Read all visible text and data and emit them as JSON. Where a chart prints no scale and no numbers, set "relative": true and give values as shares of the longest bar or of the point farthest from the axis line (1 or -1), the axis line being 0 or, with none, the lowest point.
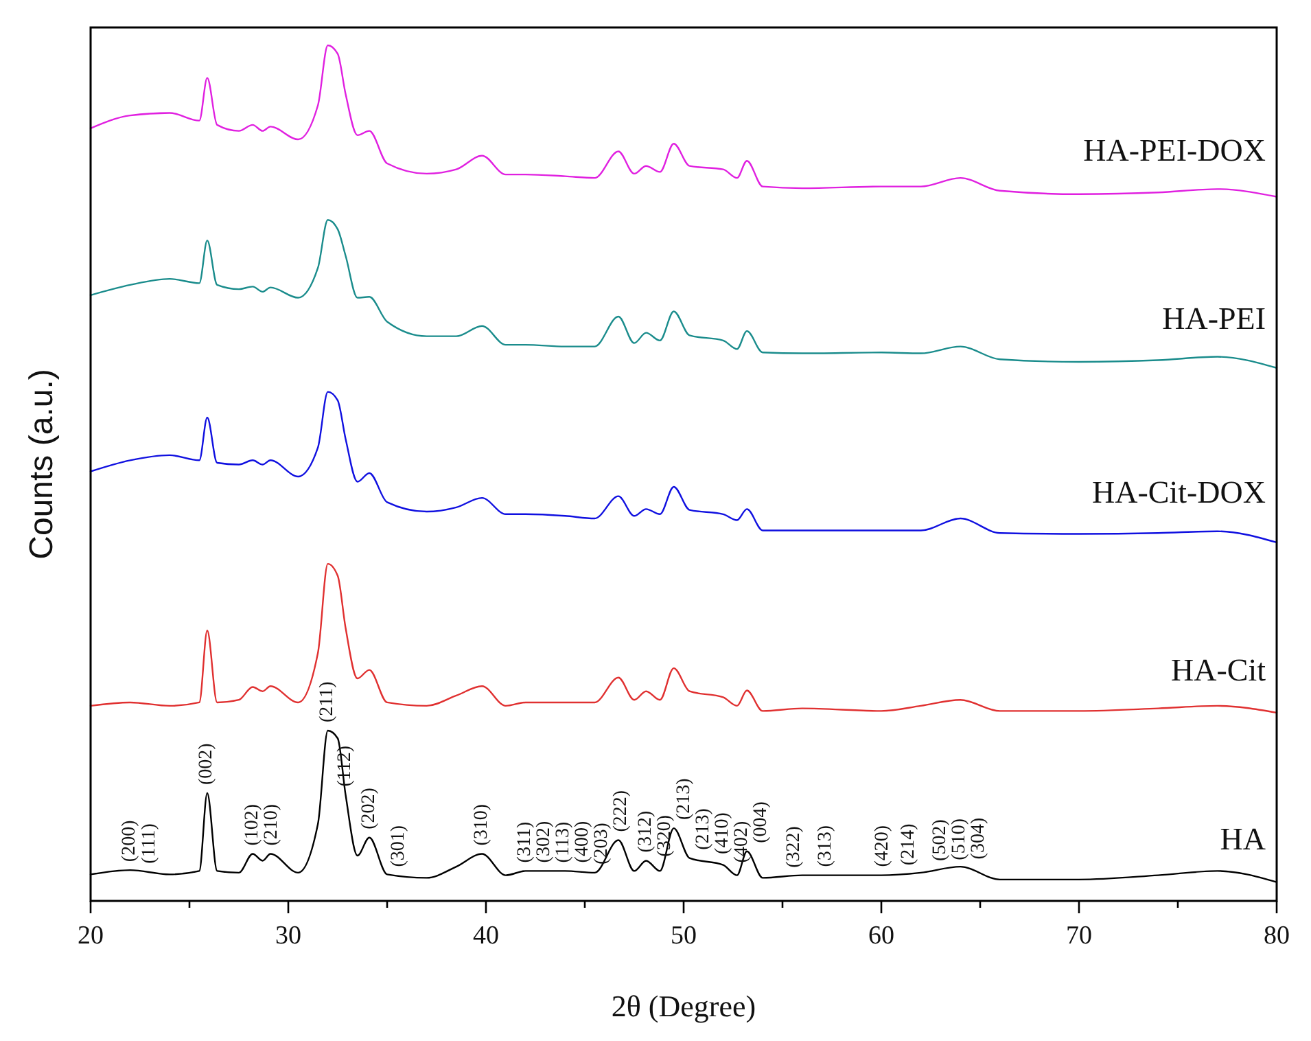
{
  "chart_data": {
    "type": "line",
    "relative": true,
    "xlabel": "2θ (Degree)",
    "ylabel": "Counts (a.u.)",
    "xlim": [
      20,
      80
    ],
    "xticks": [
      20,
      {
        "value": 25,
        "label": null
      },
      30,
      {
        "value": 35,
        "label": null
      },
      40,
      {
        "value": 45,
        "label": null
      },
      50,
      {
        "value": 55,
        "label": null
      },
      60,
      {
        "value": 65,
        "label": null
      },
      70,
      {
        "value": 75,
        "label": null
      },
      80
    ],
    "x": [
      20,
      22,
      24,
      25.5,
      25.9,
      26.4,
      27.5,
      28.2,
      28.7,
      29.1,
      30.5,
      31.5,
      32,
      32.5,
      32.9,
      33.5,
      34.1,
      35,
      37,
      38.5,
      39.8,
      41,
      42,
      44,
      45.5,
      46.7,
      47.5,
      48.1,
      48.8,
      49.5,
      50.3,
      52,
      52.7,
      53.2,
      54,
      56,
      60,
      62,
      64,
      66,
      70,
      74,
      77,
      80
    ],
    "grid": false,
    "legend": false,
    "marker": "none",
    "line_style": "solid",
    "series": [
      {
        "name": "HA",
        "color": "#000000",
        "values": [
          0.031,
          0.036,
          0.031,
          0.035,
          0.126,
          0.035,
          0.033,
          0.055,
          0.047,
          0.055,
          0.033,
          0.09,
          0.199,
          0.19,
          0.124,
          0.053,
          0.074,
          0.031,
          0.027,
          0.04,
          0.055,
          0.03,
          0.035,
          0.035,
          0.033,
          0.071,
          0.035,
          0.047,
          0.035,
          0.085,
          0.05,
          0.042,
          0.03,
          0.058,
          0.027,
          0.03,
          0.03,
          0.033,
          0.04,
          0.025,
          0.025,
          0.03,
          0.035,
          0.022
        ]
      },
      {
        "name": "HA-Cit",
        "color": "#e03030",
        "values": [
          0.228,
          0.232,
          0.228,
          0.232,
          0.316,
          0.232,
          0.235,
          0.25,
          0.245,
          0.251,
          0.232,
          0.29,
          0.394,
          0.38,
          0.319,
          0.26,
          0.27,
          0.232,
          0.228,
          0.24,
          0.251,
          0.228,
          0.232,
          0.232,
          0.232,
          0.261,
          0.235,
          0.245,
          0.235,
          0.272,
          0.245,
          0.238,
          0.228,
          0.246,
          0.222,
          0.225,
          0.222,
          0.228,
          0.235,
          0.222,
          0.222,
          0.225,
          0.228,
          0.22
        ]
      },
      {
        "name": "HA-Cit-DOX",
        "color": "#1010e0",
        "values": [
          0.502,
          0.515,
          0.521,
          0.515,
          0.565,
          0.512,
          0.51,
          0.515,
          0.51,
          0.515,
          0.496,
          0.53,
          0.595,
          0.585,
          0.54,
          0.49,
          0.5,
          0.466,
          0.455,
          0.46,
          0.471,
          0.452,
          0.452,
          0.45,
          0.447,
          0.473,
          0.45,
          0.458,
          0.452,
          0.484,
          0.457,
          0.452,
          0.445,
          0.458,
          0.433,
          0.433,
          0.433,
          0.433,
          0.447,
          0.43,
          0.429,
          0.43,
          0.432,
          0.419
        ]
      },
      {
        "name": "HA-PEI",
        "color": "#1a8c8c",
        "values": [
          0.708,
          0.72,
          0.727,
          0.722,
          0.772,
          0.72,
          0.715,
          0.718,
          0.712,
          0.717,
          0.705,
          0.74,
          0.796,
          0.785,
          0.754,
          0.705,
          0.706,
          0.677,
          0.66,
          0.66,
          0.672,
          0.65,
          0.65,
          0.648,
          0.648,
          0.683,
          0.652,
          0.664,
          0.655,
          0.689,
          0.661,
          0.655,
          0.645,
          0.666,
          0.641,
          0.64,
          0.641,
          0.64,
          0.648,
          0.633,
          0.63,
          0.632,
          0.636,
          0.623
        ]
      },
      {
        "name": "HA-PEI-DOX",
        "color": "#e020e0",
        "values": [
          0.903,
          0.918,
          0.921,
          0.912,
          0.962,
          0.907,
          0.9,
          0.907,
          0.9,
          0.905,
          0.89,
          0.93,
          1.0,
          0.99,
          0.943,
          0.895,
          0.9,
          0.862,
          0.85,
          0.855,
          0.871,
          0.849,
          0.849,
          0.847,
          0.845,
          0.876,
          0.85,
          0.859,
          0.852,
          0.885,
          0.859,
          0.855,
          0.845,
          0.865,
          0.835,
          0.833,
          0.835,
          0.835,
          0.845,
          0.83,
          0.826,
          0.828,
          0.832,
          0.823
        ]
      }
    ],
    "annotations": [
      {
        "text": "(200)",
        "x": 22,
        "y": 0.036
      },
      {
        "text": "(111)",
        "x": 23,
        "y": 0.034
      },
      {
        "text": "(002)",
        "x": 25.9,
        "y": 0.126
      },
      {
        "text": "(102)",
        "x": 28.2,
        "y": 0.055
      },
      {
        "text": "(210)",
        "x": 29.1,
        "y": 0.055
      },
      {
        "text": "(211)",
        "x": 32,
        "y": 0.199
      },
      {
        "text": "(112)",
        "x": 32.9,
        "y": 0.124
      },
      {
        "text": "(202)",
        "x": 34.1,
        "y": 0.074
      },
      {
        "text": "(301)",
        "x": 35.6,
        "y": 0.03
      },
      {
        "text": "(310)",
        "x": 39.8,
        "y": 0.055
      },
      {
        "text": "(311)",
        "x": 42,
        "y": 0.035
      },
      {
        "text": "(302)",
        "x": 42.3,
        "y": 0.035
      },
      {
        "text": "(113)",
        "x": 43.8,
        "y": 0.035
      },
      {
        "text": "(400)",
        "x": 44,
        "y": 0.035
      },
      {
        "text": "(203)",
        "x": 45.5,
        "y": 0.033
      },
      {
        "text": "(222)",
        "x": 46.7,
        "y": 0.071
      },
      {
        "text": "(312)",
        "x": 48.1,
        "y": 0.047
      },
      {
        "text": "(320)",
        "x": 48.4,
        "y": 0.042
      },
      {
        "text": "(213)",
        "x": 49.5,
        "y": 0.085
      },
      {
        "text": "(213)",
        "x": 50.3,
        "y": 0.05
      },
      {
        "text": "(410)",
        "x": 51.4,
        "y": 0.045
      },
      {
        "text": "(402)",
        "x": 52.4,
        "y": 0.035
      },
      {
        "text": "(004)",
        "x": 53.2,
        "y": 0.058
      },
      {
        "text": "(322)",
        "x": 55.6,
        "y": 0.029
      },
      {
        "text": "(313)",
        "x": 57.2,
        "y": 0.03
      },
      {
        "text": "(420)",
        "x": 60.1,
        "y": 0.03
      },
      {
        "text": "(214)",
        "x": 61.4,
        "y": 0.032
      },
      {
        "text": "(502)",
        "x": 63,
        "y": 0.037
      },
      {
        "text": "(510)",
        "x": 63.5,
        "y": 0.038
      },
      {
        "text": "(304)",
        "x": 64.2,
        "y": 0.039
      }
    ]
  }
}
